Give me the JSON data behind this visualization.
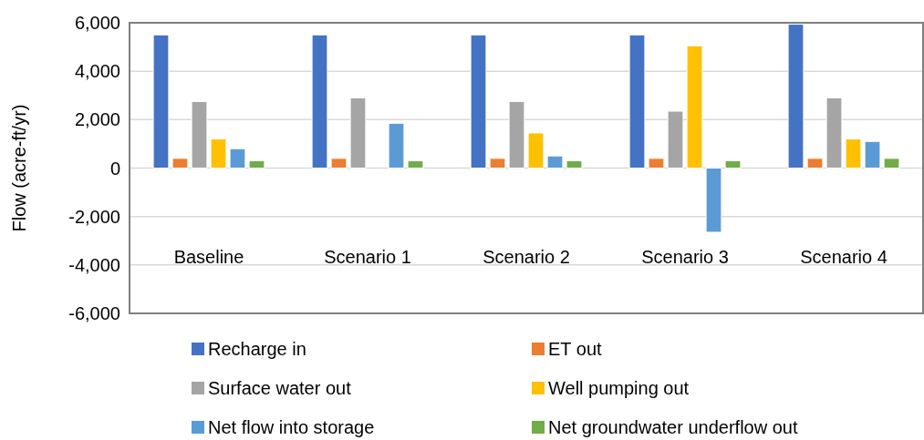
{
  "chart_data": {
    "type": "bar",
    "ylabel": "Flow (acre-ft/yr)",
    "categories": [
      "Baseline",
      "Scenario 1",
      "Scenario 2",
      "Scenario 3",
      "Scenario 4"
    ],
    "series": [
      {
        "name": "Recharge in",
        "color": "#4472c4",
        "values": [
          5500,
          5500,
          5500,
          5500,
          5940
        ]
      },
      {
        "name": "ET out",
        "color": "#ed7d31",
        "values": [
          400,
          400,
          400,
          400,
          400
        ]
      },
      {
        "name": "Surface water out",
        "color": "#a5a5a5",
        "values": [
          2750,
          2900,
          2750,
          2350,
          2900
        ]
      },
      {
        "name": "Well pumping out",
        "color": "#ffc000",
        "values": [
          1200,
          0,
          1450,
          5050,
          1200
        ]
      },
      {
        "name": "Net flow into storage",
        "color": "#5b9bd5",
        "values": [
          800,
          1850,
          500,
          -2650,
          1100
        ]
      },
      {
        "name": "Net groundwater underflow out",
        "color": "#70ad47",
        "values": [
          300,
          300,
          300,
          300,
          400
        ]
      }
    ],
    "ylim": [
      -6000,
      6000
    ],
    "yticks": [
      {
        "value": -6000,
        "label": "-6,000"
      },
      {
        "value": -4000,
        "label": "-4,000"
      },
      {
        "value": -2000,
        "label": "-2,000"
      },
      0,
      {
        "value": 2000,
        "label": "2,000"
      },
      {
        "value": 4000,
        "label": "4,000"
      },
      {
        "value": 6000,
        "label": "6,000"
      }
    ],
    "grid": "y",
    "legend": "bottom"
  }
}
